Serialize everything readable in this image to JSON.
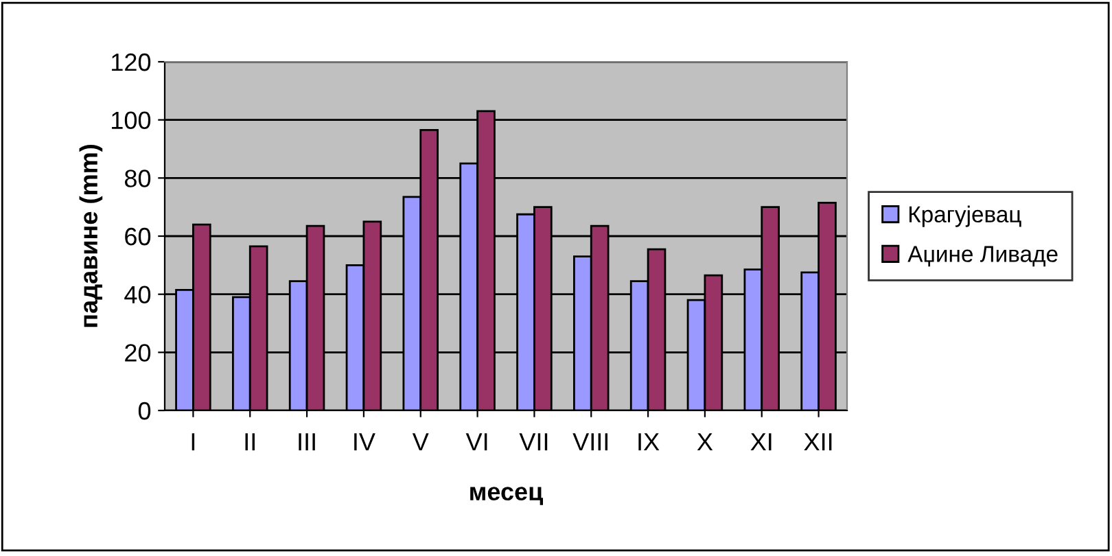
{
  "chart_data": {
    "type": "bar",
    "xlabel": "месец",
    "ylabel": "падавине (mm)",
    "categories": [
      "I",
      "II",
      "III",
      "IV",
      "V",
      "VI",
      "VII",
      "VIII",
      "IX",
      "X",
      "XI",
      "XII"
    ],
    "series": [
      {
        "name": "Крагујевац",
        "color": "#9999ff",
        "values": [
          41.5,
          39,
          44.5,
          50,
          73.5,
          85,
          67.5,
          53,
          44.5,
          38,
          48.5,
          47.5
        ]
      },
      {
        "name": "Аџине Ливаде",
        "color": "#993366",
        "values": [
          64,
          56.5,
          63.5,
          65,
          96.5,
          103,
          70,
          63.5,
          55.5,
          46.5,
          70,
          71.5
        ]
      }
    ],
    "ylim": [
      0,
      120
    ],
    "yticks": [
      0,
      20,
      40,
      60,
      80,
      100,
      120
    ],
    "grid": "y",
    "legend": "right"
  }
}
